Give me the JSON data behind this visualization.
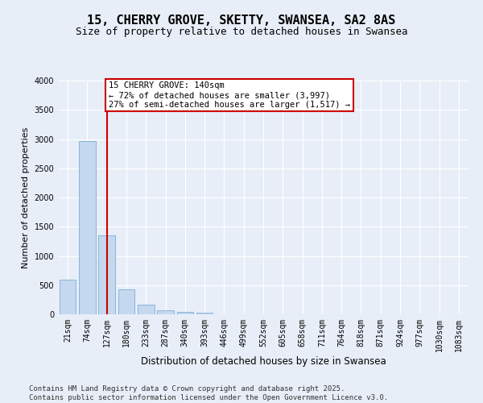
{
  "title": "15, CHERRY GROVE, SKETTY, SWANSEA, SA2 8AS",
  "subtitle": "Size of property relative to detached houses in Swansea",
  "xlabel": "Distribution of detached houses by size in Swansea",
  "ylabel": "Number of detached properties",
  "categories": [
    "21sqm",
    "74sqm",
    "127sqm",
    "180sqm",
    "233sqm",
    "287sqm",
    "340sqm",
    "393sqm",
    "446sqm",
    "499sqm",
    "552sqm",
    "605sqm",
    "658sqm",
    "711sqm",
    "764sqm",
    "818sqm",
    "871sqm",
    "924sqm",
    "977sqm",
    "1030sqm",
    "1083sqm"
  ],
  "values": [
    590,
    2970,
    1350,
    430,
    160,
    75,
    40,
    30,
    0,
    0,
    0,
    0,
    0,
    0,
    0,
    0,
    0,
    0,
    0,
    0,
    0
  ],
  "bar_color": "#c5d8ef",
  "bar_edge_color": "#7aadd4",
  "vline_x": 2,
  "vline_color": "#cc0000",
  "annotation_text": "15 CHERRY GROVE: 140sqm\n← 72% of detached houses are smaller (3,997)\n27% of semi-detached houses are larger (1,517) →",
  "annotation_box_color": "#ffffff",
  "annotation_box_edge": "#cc0000",
  "ylim": [
    0,
    4000
  ],
  "yticks": [
    0,
    500,
    1000,
    1500,
    2000,
    2500,
    3000,
    3500,
    4000
  ],
  "background_color": "#e8eef8",
  "grid_color": "#ffffff",
  "footer_line1": "Contains HM Land Registry data © Crown copyright and database right 2025.",
  "footer_line2": "Contains public sector information licensed under the Open Government Licence v3.0.",
  "title_fontsize": 11,
  "subtitle_fontsize": 9,
  "xlabel_fontsize": 8.5,
  "ylabel_fontsize": 8,
  "tick_fontsize": 7,
  "annot_fontsize": 7.5,
  "footer_fontsize": 6.5
}
